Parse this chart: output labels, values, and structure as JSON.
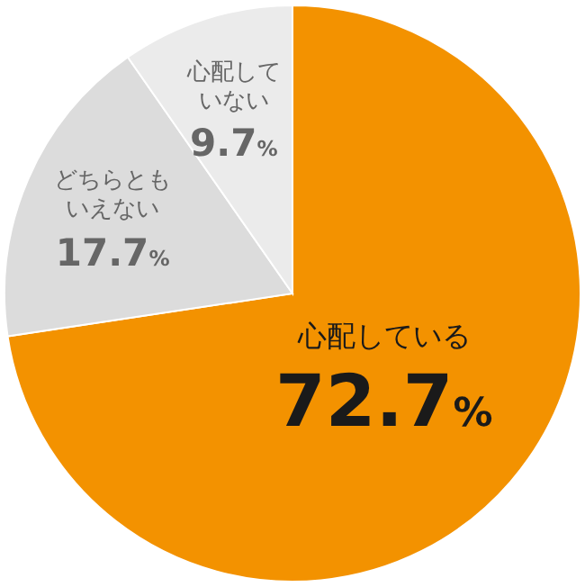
{
  "chart_data": {
    "type": "pie",
    "categories": [
      "心配している",
      "どちらともいえない",
      "心配していない"
    ],
    "values": [
      72.7,
      17.7,
      9.7
    ],
    "value_labels": [
      "72.7%",
      "17.7%",
      "9.7%"
    ],
    "colors": [
      "#f39200",
      "#dcdcdc",
      "#ebebeb"
    ],
    "legend": false
  }
}
